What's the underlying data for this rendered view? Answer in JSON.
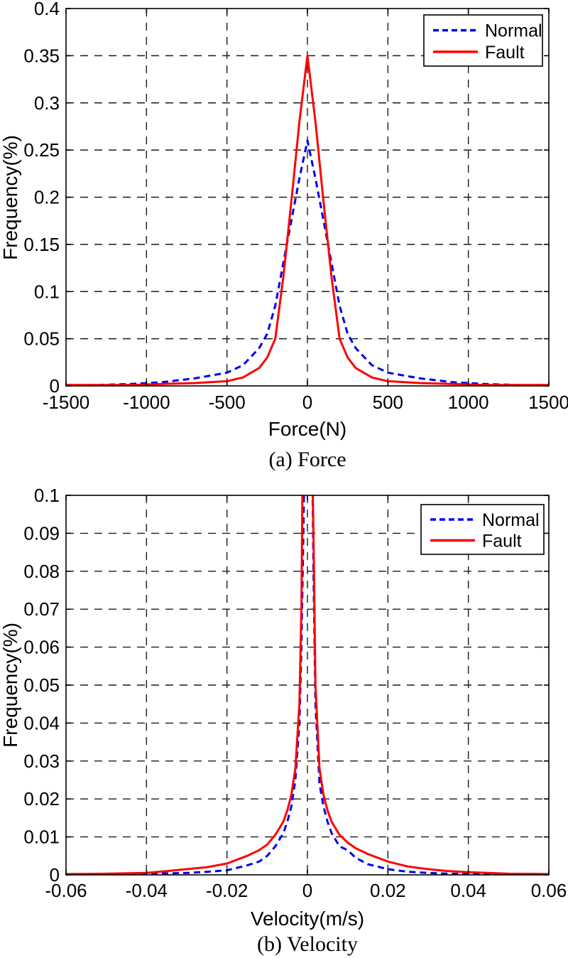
{
  "figure": {
    "background": "#ffffff"
  },
  "colors": {
    "normal_series": "#0000ee",
    "fault_series": "#ff0000",
    "grid": "#1a1a1a",
    "axis": "#000000",
    "legend_background": "#ffffff"
  },
  "legend": {
    "items": [
      {
        "label": "Normal"
      },
      {
        "label": "Fault"
      }
    ]
  },
  "chart_data": [
    {
      "type": "line",
      "caption": "(a) Force",
      "xlabel": "Force(N)",
      "ylabel": "Frequency(%)",
      "xlim": [
        -1500,
        1500
      ],
      "ylim": [
        0,
        0.4
      ],
      "xticks": [
        -1500,
        -1000,
        -500,
        0,
        500,
        1000,
        1500
      ],
      "xtick_labels": [
        "-1500",
        "-1000",
        "-500",
        "0",
        "500",
        "1000",
        "1500"
      ],
      "yticks": [
        0,
        0.05,
        0.1,
        0.15,
        0.2,
        0.25,
        0.3,
        0.35,
        0.4
      ],
      "ytick_labels": [
        "0",
        "0.05",
        "0.1",
        "0.15",
        "0.2",
        "0.25",
        "0.3",
        "0.35",
        "0.4"
      ],
      "grid": true,
      "legend_position": "top-right",
      "series": [
        {
          "name": "Normal",
          "color": "#0000ee",
          "style": "dashed",
          "x": [
            -1500,
            -1300,
            -1100,
            -900,
            -700,
            -500,
            -400,
            -300,
            -250,
            -200,
            -150,
            -100,
            -50,
            0,
            50,
            100,
            150,
            200,
            250,
            300,
            400,
            500,
            700,
            900,
            1100,
            1300,
            1500
          ],
          "y": [
            0.001,
            0.001,
            0.002,
            0.004,
            0.008,
            0.014,
            0.022,
            0.04,
            0.055,
            0.085,
            0.13,
            0.175,
            0.22,
            0.26,
            0.22,
            0.175,
            0.13,
            0.085,
            0.055,
            0.04,
            0.022,
            0.014,
            0.008,
            0.004,
            0.002,
            0.001,
            0.001
          ]
        },
        {
          "name": "Fault",
          "color": "#ff0000",
          "style": "solid",
          "x": [
            -1500,
            -1300,
            -1100,
            -900,
            -700,
            -500,
            -400,
            -300,
            -250,
            -200,
            -150,
            -100,
            -50,
            0,
            50,
            100,
            150,
            200,
            250,
            300,
            400,
            500,
            700,
            900,
            1100,
            1300,
            1500
          ],
          "y": [
            0.001,
            0.001,
            0.001,
            0.002,
            0.003,
            0.005,
            0.009,
            0.019,
            0.03,
            0.05,
            0.115,
            0.195,
            0.28,
            0.35,
            0.28,
            0.195,
            0.115,
            0.05,
            0.03,
            0.019,
            0.009,
            0.005,
            0.003,
            0.002,
            0.001,
            0.001,
            0.001
          ]
        }
      ]
    },
    {
      "type": "line",
      "caption": "(b) Velocity",
      "xlabel": "Velocity(m/s)",
      "ylabel": "Frequency(%)",
      "xlim": [
        -0.06,
        0.06
      ],
      "ylim": [
        0,
        0.1
      ],
      "xticks": [
        -0.06,
        -0.04,
        -0.02,
        0,
        0.02,
        0.04,
        0.06
      ],
      "xtick_labels": [
        "-0.06",
        "-0.04",
        "-0.02",
        "0",
        "0.02",
        "0.04",
        "0.06"
      ],
      "yticks": [
        0,
        0.01,
        0.02,
        0.03,
        0.04,
        0.05,
        0.06,
        0.07,
        0.08,
        0.09,
        0.1
      ],
      "ytick_labels": [
        "0",
        "0.01",
        "0.02",
        "0.03",
        "0.04",
        "0.05",
        "0.06",
        "0.07",
        "0.08",
        "0.09",
        "0.1"
      ],
      "grid": true,
      "legend_position": "top-right",
      "series": [
        {
          "name": "Normal",
          "color": "#0000ee",
          "style": "dashed",
          "x": [
            -0.06,
            -0.05,
            -0.04,
            -0.035,
            -0.03,
            -0.025,
            -0.02,
            -0.015,
            -0.012,
            -0.01,
            -0.008,
            -0.006,
            -0.005,
            -0.004,
            -0.003,
            -0.002,
            -0.0015,
            -0.001,
            -0.0005,
            0,
            0.0005,
            0.001,
            0.0015,
            0.002,
            0.003,
            0.004,
            0.005,
            0.006,
            0.008,
            0.01,
            0.012,
            0.015,
            0.02,
            0.025,
            0.03,
            0.035,
            0.04,
            0.05,
            0.06
          ],
          "y": [
            0.0001,
            0.0002,
            0.0003,
            0.0004,
            0.0005,
            0.0008,
            0.0012,
            0.0025,
            0.0035,
            0.005,
            0.0075,
            0.011,
            0.014,
            0.018,
            0.025,
            0.04,
            0.06,
            0.09,
            0.13,
            0.13,
            0.13,
            0.13,
            0.08,
            0.045,
            0.024,
            0.018,
            0.014,
            0.011,
            0.0075,
            0.0065,
            0.0045,
            0.0028,
            0.0015,
            0.0008,
            0.0005,
            0.0003,
            0.0002,
            0.0002,
            0.0001
          ]
        },
        {
          "name": "Fault",
          "color": "#ff0000",
          "style": "solid",
          "x": [
            -0.06,
            -0.05,
            -0.04,
            -0.035,
            -0.03,
            -0.025,
            -0.02,
            -0.015,
            -0.012,
            -0.01,
            -0.008,
            -0.006,
            -0.005,
            -0.004,
            -0.003,
            -0.002,
            -0.0015,
            -0.001,
            -0.0005,
            0,
            0.0005,
            0.001,
            0.0015,
            0.002,
            0.003,
            0.004,
            0.005,
            0.006,
            0.008,
            0.01,
            0.012,
            0.015,
            0.02,
            0.025,
            0.03,
            0.035,
            0.04,
            0.05,
            0.06
          ],
          "y": [
            0.0002,
            0.0003,
            0.0005,
            0.001,
            0.0015,
            0.002,
            0.003,
            0.005,
            0.0065,
            0.008,
            0.0105,
            0.014,
            0.017,
            0.021,
            0.028,
            0.045,
            0.07,
            0.13,
            0.13,
            0.13,
            0.13,
            0.12,
            0.09,
            0.05,
            0.028,
            0.021,
            0.017,
            0.014,
            0.0105,
            0.0085,
            0.007,
            0.0055,
            0.0035,
            0.0022,
            0.0015,
            0.001,
            0.0007,
            0.0003,
            0.0002
          ]
        }
      ]
    }
  ]
}
